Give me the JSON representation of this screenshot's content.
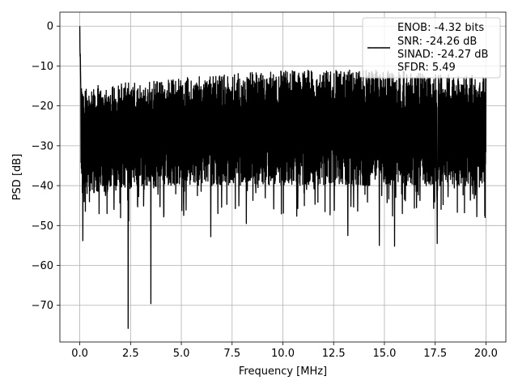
{
  "chart_data": {
    "type": "line",
    "xlabel": "Frequency [MHz]",
    "ylabel": "PSD [dB]",
    "xlim": [
      -0.98,
      20.98
    ],
    "ylim": [
      -79.2,
      3.5
    ],
    "xticks": [
      0.0,
      2.5,
      5.0,
      7.5,
      10.0,
      12.5,
      15.0,
      17.5,
      20.0
    ],
    "xtick_labels": [
      "0.0",
      "2.5",
      "5.0",
      "7.5",
      "10.0",
      "12.5",
      "15.0",
      "17.5",
      "20.0"
    ],
    "yticks": [
      0,
      -10,
      -20,
      -30,
      -40,
      -50,
      -60,
      -70
    ],
    "ytick_labels": [
      "0",
      "−10",
      "−20",
      "−30",
      "−40",
      "−50",
      "−60",
      "−70"
    ],
    "grid": true,
    "legend": {
      "placement": "top-right",
      "entries": [
        "ENOB: -4.32 bits",
        "SNR: -24.26 dB",
        "SINAD: -24.27 dB",
        "SFDR: 5.49"
      ]
    },
    "series": [
      {
        "color": "#000000",
        "style": "dense noisy trace",
        "peak": {
          "x": 0.0,
          "y": 0.0
        },
        "notable_minima": [
          {
            "x": 0.15,
            "y": -53.8
          },
          {
            "x": 2.38,
            "y": -75.8
          },
          {
            "x": 3.5,
            "y": -69.6
          },
          {
            "x": 6.45,
            "y": -52.8
          },
          {
            "x": 8.2,
            "y": -49.5
          },
          {
            "x": 13.2,
            "y": -52.5
          },
          {
            "x": 14.75,
            "y": -55.0
          },
          {
            "x": 15.5,
            "y": -55.2
          },
          {
            "x": 17.6,
            "y": -54.5
          }
        ],
        "upper_envelope": {
          "x": [
            0.5,
            5.0,
            10.0,
            15.0,
            20.0
          ],
          "y": [
            -15.0,
            -13.0,
            -11.0,
            -11.0,
            -12.5
          ]
        },
        "lower_envelope": {
          "x": [
            0.5,
            5.0,
            10.0,
            15.0,
            20.0
          ],
          "y": [
            -42.0,
            -40.0,
            -40.0,
            -40.0,
            -40.0
          ]
        }
      }
    ]
  }
}
